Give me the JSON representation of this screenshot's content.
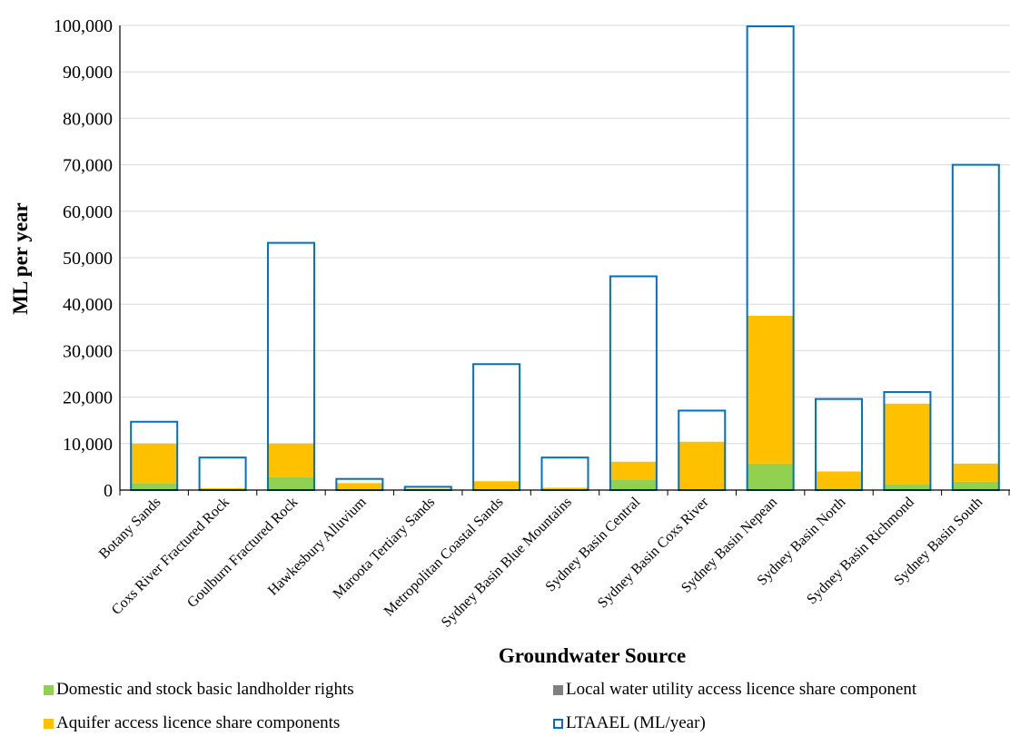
{
  "chart_data": {
    "type": "bar",
    "stacked": true,
    "title": "",
    "xlabel": "Groundwater Source",
    "ylabel": "ML per year",
    "ylim": [
      0,
      100000
    ],
    "yticks": [
      "0",
      "10,000",
      "20,000",
      "30,000",
      "40,000",
      "50,000",
      "60,000",
      "70,000",
      "80,000",
      "90,000",
      "100,000"
    ],
    "grid": true,
    "legend_position": "bottom",
    "categories": [
      "Botany Sands",
      "Coxs River Fractured Rock",
      "Goulburn Fractured Rock",
      "Hawkesbury Alluvium",
      "Maroota Tertiary Sands",
      "Metropolitan Coastal Sands",
      "Sydney Basin Blue Mountains",
      "Sydney Basin Central",
      "Sydney Basin Coxs River",
      "Sydney Basin Nepean",
      "Sydney Basin North",
      "Sydney Basin Richmond",
      "Sydney Basin South"
    ],
    "series": [
      {
        "name": "Domestic and stock basic landholder rights",
        "color": "#92d050",
        "values": [
          1500,
          100,
          2800,
          200,
          100,
          200,
          100,
          2300,
          200,
          5700,
          300,
          1300,
          1800
        ]
      },
      {
        "name": "Local water utility access licence share component",
        "color": "#808080",
        "values": [
          0,
          0,
          0,
          0,
          0,
          0,
          0,
          0,
          0,
          0,
          0,
          0,
          0
        ]
      },
      {
        "name": "Aquifer access licence share components",
        "color": "#ffc000",
        "values": [
          8500,
          300,
          7200,
          1300,
          200,
          1700,
          400,
          3800,
          10200,
          31800,
          3700,
          17300,
          3900
        ]
      }
    ],
    "outline_series": {
      "name": "LTAAEL (ML/year)",
      "color": "#0070c0",
      "values": [
        14700,
        7000,
        53200,
        2400,
        700,
        27100,
        7000,
        46000,
        17100,
        99800,
        19600,
        21100,
        70000
      ]
    }
  },
  "legend": [
    {
      "label": "Domestic and stock basic landholder rights",
      "color": "#92d050",
      "outline": false
    },
    {
      "label": "Local water utility access licence share component",
      "color": "#808080",
      "outline": false
    },
    {
      "label": "Aquifer access licence share components",
      "color": "#ffc000",
      "outline": false
    },
    {
      "label": "LTAAEL (ML/year)",
      "color": "#0070c0",
      "outline": true
    }
  ]
}
